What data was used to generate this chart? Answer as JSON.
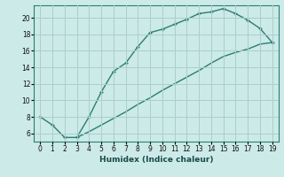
{
  "xlabel": "Humidex (Indice chaleur)",
  "xlim": [
    -0.5,
    19.5
  ],
  "ylim": [
    5,
    21.5
  ],
  "yticks": [
    6,
    8,
    10,
    12,
    14,
    16,
    18,
    20
  ],
  "xticks": [
    0,
    1,
    2,
    3,
    4,
    5,
    6,
    7,
    8,
    9,
    10,
    11,
    12,
    13,
    14,
    15,
    16,
    17,
    18,
    19
  ],
  "line_color": "#2a7d75",
  "bg_color": "#cceae8",
  "grid_color": "#aacfcc",
  "upper_x": [
    0,
    1,
    2,
    3,
    4,
    5,
    6,
    7,
    8,
    9,
    10,
    11,
    12,
    13,
    14,
    15,
    16,
    17,
    18,
    19
  ],
  "upper_y": [
    8,
    7,
    5.5,
    5.5,
    8,
    11,
    13.5,
    14.5,
    16.5,
    18.2,
    18.6,
    19.2,
    19.8,
    20.5,
    20.7,
    21.1,
    20.5,
    19.7,
    18.7,
    17.0
  ],
  "lower_x": [
    3,
    4,
    5,
    6,
    7,
    8,
    9,
    10,
    11,
    12,
    13,
    14,
    15,
    16,
    17,
    18,
    19
  ],
  "lower_y": [
    5.5,
    6.2,
    7.0,
    7.8,
    8.6,
    9.5,
    10.3,
    11.2,
    12.0,
    12.8,
    13.6,
    14.5,
    15.3,
    15.8,
    16.2,
    16.8,
    17.0
  ],
  "marker": "+"
}
